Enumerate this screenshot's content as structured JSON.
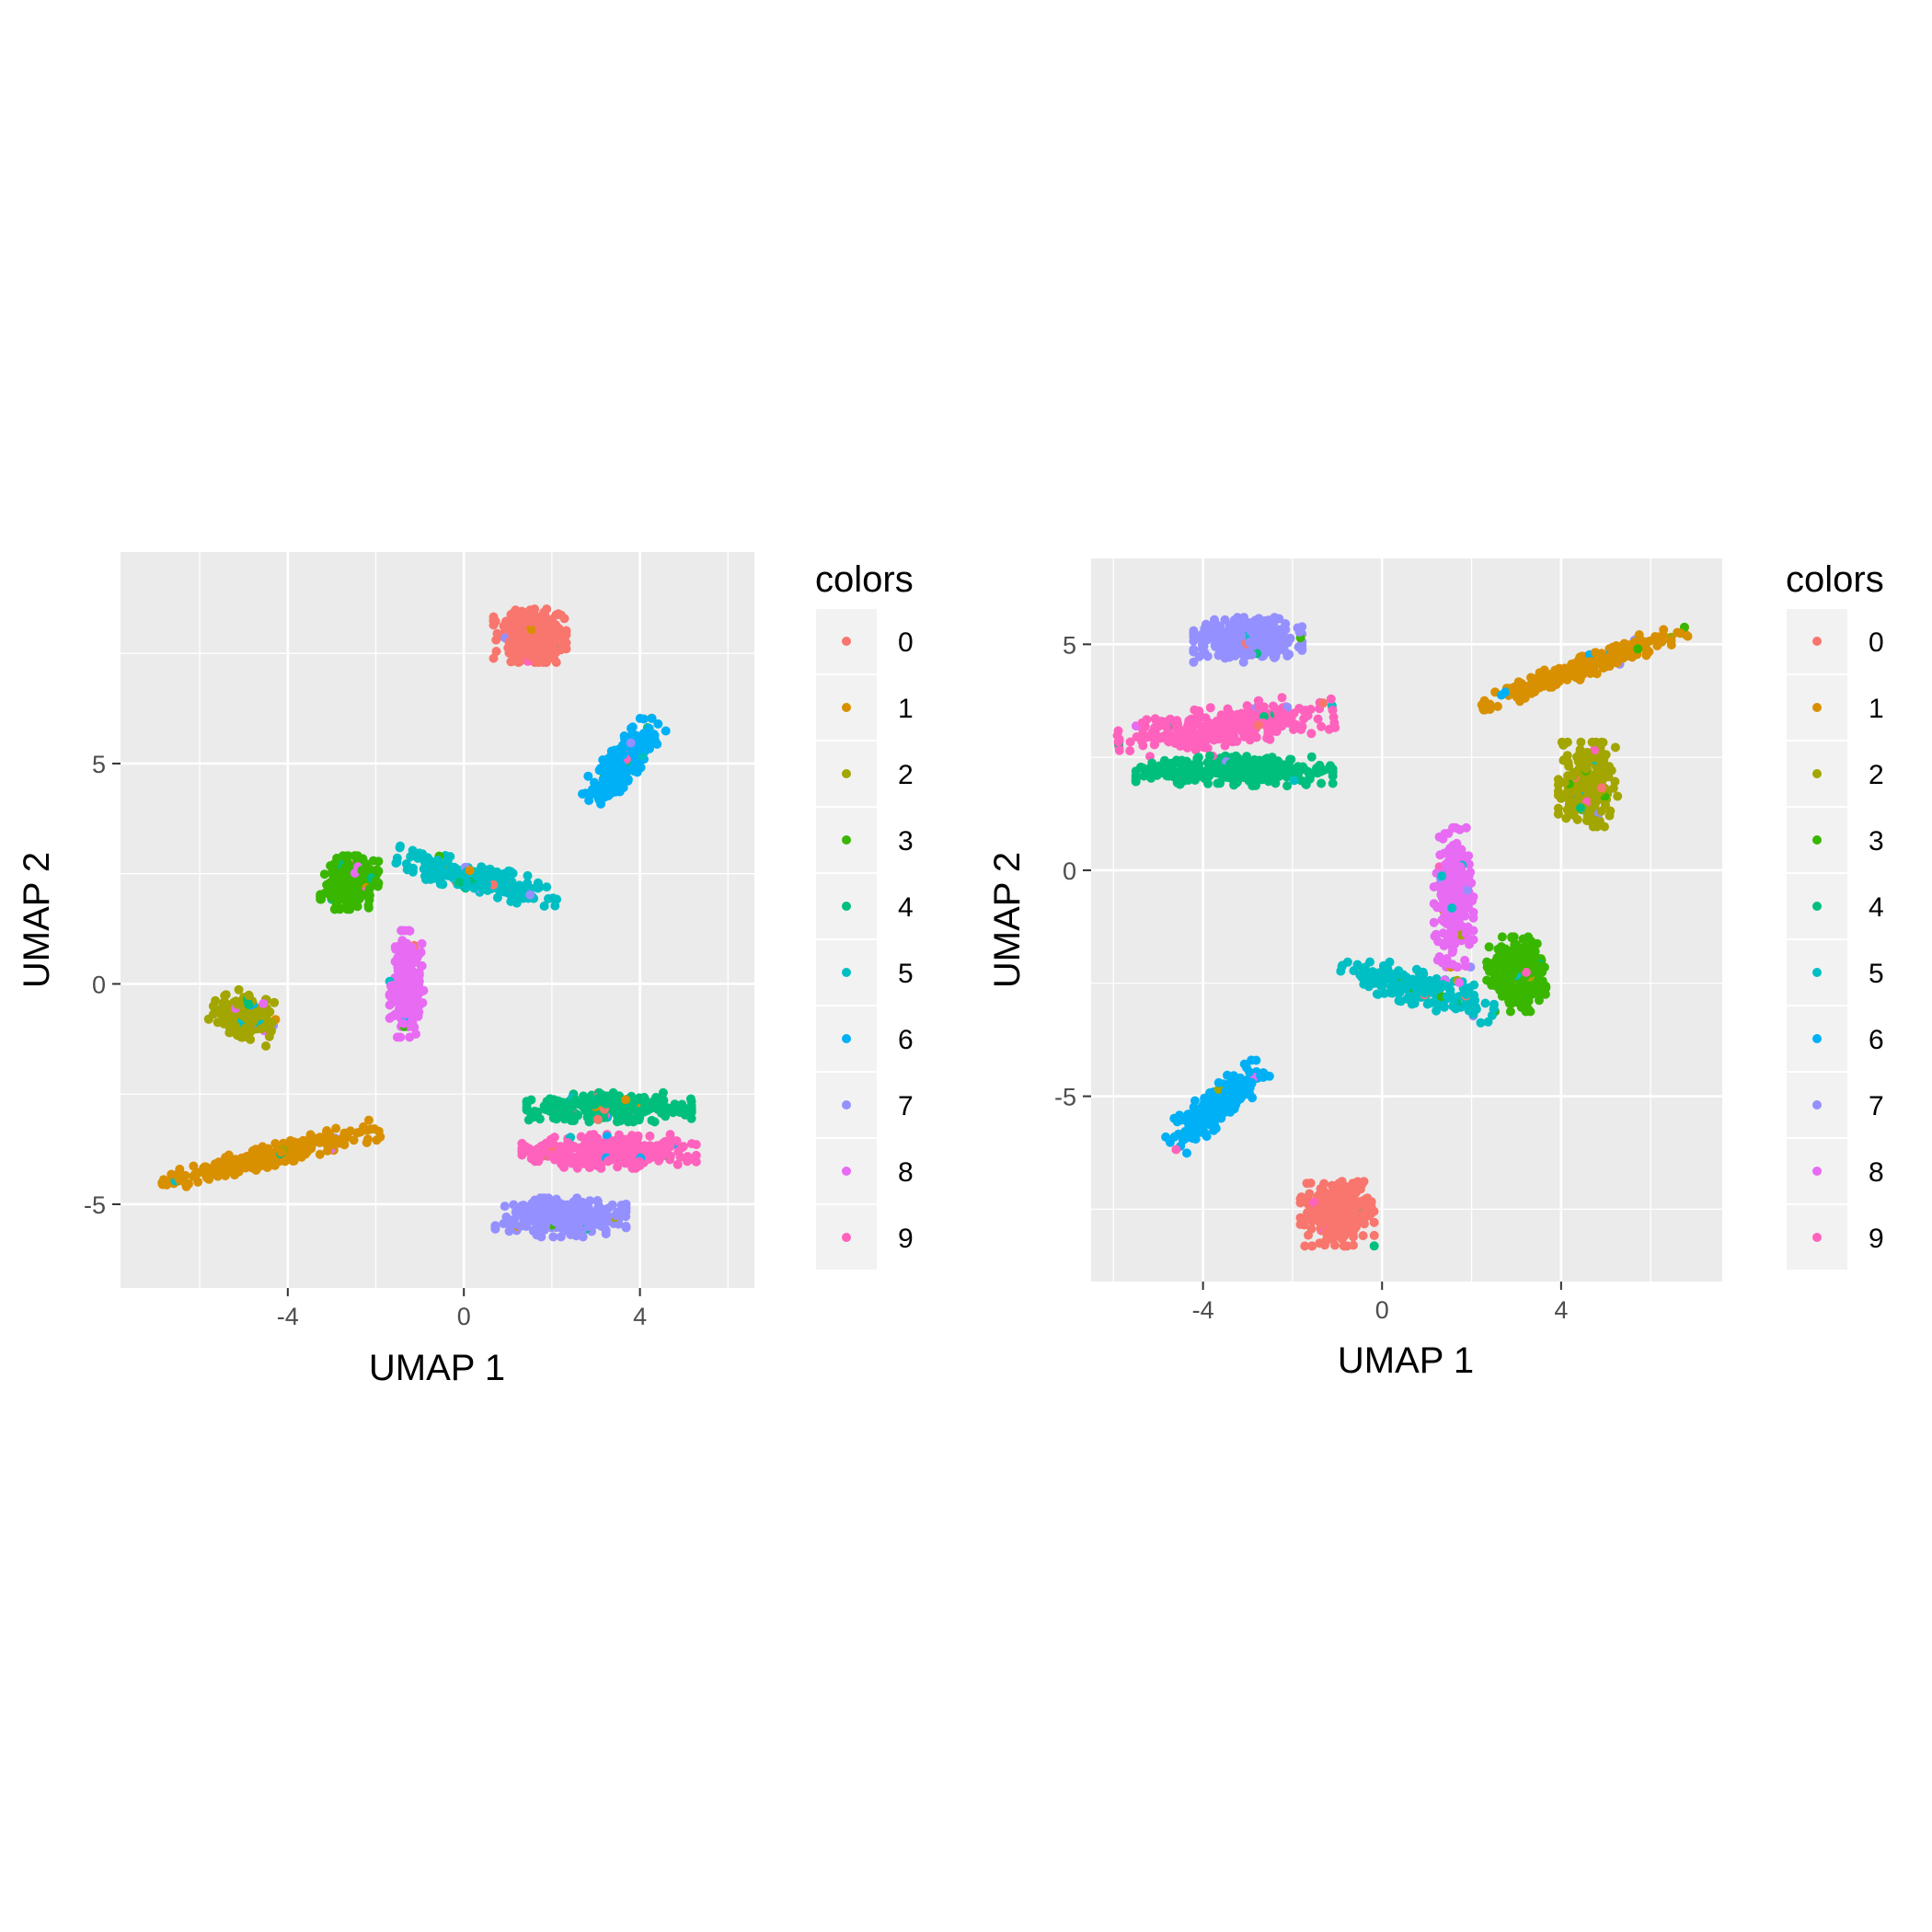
{
  "chart_data": [
    {
      "type": "scatter",
      "title": "",
      "xlabel": "UMAP 1",
      "ylabel": "UMAP 2",
      "xlim": [
        -7.8,
        6.6
      ],
      "ylim": [
        -6.9,
        9.8
      ],
      "xticks": [
        -4,
        0,
        4
      ],
      "yticks": [
        -5,
        0,
        5
      ],
      "xtick_labels": [
        "-4",
        "0",
        "4"
      ],
      "ytick_labels": [
        "-5",
        "0",
        "5"
      ],
      "grid": true,
      "legend": {
        "title": "colors",
        "position": "right",
        "entries": [
          "0",
          "1",
          "2",
          "3",
          "4",
          "5",
          "6",
          "7",
          "8",
          "9"
        ]
      },
      "clusters": [
        {
          "label": "0",
          "color": "#F8766D",
          "center": [
            1.5,
            7.9
          ],
          "spread": [
            0.75,
            0.55
          ],
          "angle": 0,
          "n": 320
        },
        {
          "label": "1",
          "color": "#D89000",
          "center": [
            -4.4,
            -3.9
          ],
          "spread": [
            2.3,
            0.22
          ],
          "angle": 14,
          "n": 300
        },
        {
          "label": "2",
          "color": "#A3A500",
          "center": [
            -5.0,
            -0.7
          ],
          "spread": [
            0.65,
            0.45
          ],
          "angle": -20,
          "n": 220
        },
        {
          "label": "3",
          "color": "#39B600",
          "center": [
            -2.6,
            2.3
          ],
          "spread": [
            0.6,
            0.55
          ],
          "angle": 0,
          "n": 280
        },
        {
          "label": "4",
          "color": "#00BF7D",
          "center": [
            3.3,
            -2.8
          ],
          "spread": [
            1.7,
            0.3
          ],
          "angle": 0,
          "n": 320
        },
        {
          "label": "5",
          "color": "#00BFC4",
          "center": [
            0.3,
            2.4
          ],
          "spread": [
            1.7,
            0.3
          ],
          "angle": -14,
          "n": 240
        },
        {
          "label": "6",
          "color": "#00B0F6",
          "center": [
            3.6,
            5.0
          ],
          "spread": [
            1.1,
            0.35
          ],
          "angle": 48,
          "n": 260
        },
        {
          "label": "7",
          "color": "#9590FF",
          "center": [
            2.2,
            -5.3
          ],
          "spread": [
            1.35,
            0.4
          ],
          "angle": 0,
          "n": 300
        },
        {
          "label": "8",
          "color": "#E76BF3",
          "center": [
            -1.3,
            0.0
          ],
          "spread": [
            0.35,
            1.1
          ],
          "angle": 0,
          "n": 240
        },
        {
          "label": "9",
          "color": "#FF62BC",
          "center": [
            3.3,
            -3.8
          ],
          "spread": [
            1.8,
            0.35
          ],
          "angle": 0,
          "n": 340
        }
      ]
    },
    {
      "type": "scatter",
      "title": "",
      "xlabel": "UMAP 1",
      "ylabel": "UMAP 2",
      "xlim": [
        -6.5,
        7.6
      ],
      "ylim": [
        -9.1,
        6.9
      ],
      "xticks": [
        -4,
        0,
        4
      ],
      "yticks": [
        -5,
        0,
        5
      ],
      "xtick_labels": [
        "-4",
        "0",
        "4"
      ],
      "ytick_labels": [
        "-5",
        "0",
        "5"
      ],
      "grid": true,
      "legend": {
        "title": "colors",
        "position": "right",
        "entries": [
          "0",
          "1",
          "2",
          "3",
          "4",
          "5",
          "6",
          "7",
          "8",
          "9"
        ]
      },
      "clusters": [
        {
          "label": "0",
          "color": "#F8766D",
          "center": [
            -1.0,
            -7.6
          ],
          "spread": [
            0.75,
            0.65
          ],
          "angle": 0,
          "n": 320
        },
        {
          "label": "1",
          "color": "#D89000",
          "center": [
            4.5,
            4.5
          ],
          "spread": [
            2.2,
            0.22
          ],
          "angle": 20,
          "n": 300
        },
        {
          "label": "2",
          "color": "#A3A500",
          "center": [
            4.6,
            1.9
          ],
          "spread": [
            0.6,
            0.85
          ],
          "angle": 0,
          "n": 220
        },
        {
          "label": "3",
          "color": "#39B600",
          "center": [
            3.0,
            -2.3
          ],
          "spread": [
            0.6,
            0.75
          ],
          "angle": 0,
          "n": 280
        },
        {
          "label": "4",
          "color": "#00BF7D",
          "center": [
            -3.3,
            2.2
          ],
          "spread": [
            2.0,
            0.3
          ],
          "angle": 0,
          "n": 320
        },
        {
          "label": "5",
          "color": "#00BFC4",
          "center": [
            0.8,
            -2.6
          ],
          "spread": [
            1.6,
            0.35
          ],
          "angle": -15,
          "n": 240
        },
        {
          "label": "6",
          "color": "#00B0F6",
          "center": [
            -3.7,
            -5.2
          ],
          "spread": [
            1.2,
            0.35
          ],
          "angle": 40,
          "n": 260
        },
        {
          "label": "7",
          "color": "#9590FF",
          "center": [
            -3.0,
            5.1
          ],
          "spread": [
            1.1,
            0.45
          ],
          "angle": 0,
          "n": 300
        },
        {
          "label": "8",
          "color": "#E76BF3",
          "center": [
            1.6,
            -0.6
          ],
          "spread": [
            0.4,
            1.4
          ],
          "angle": 0,
          "n": 240
        },
        {
          "label": "9",
          "color": "#FF62BC",
          "center": [
            -3.5,
            3.2
          ],
          "spread": [
            2.2,
            0.4
          ],
          "angle": 8,
          "n": 340
        }
      ]
    }
  ]
}
